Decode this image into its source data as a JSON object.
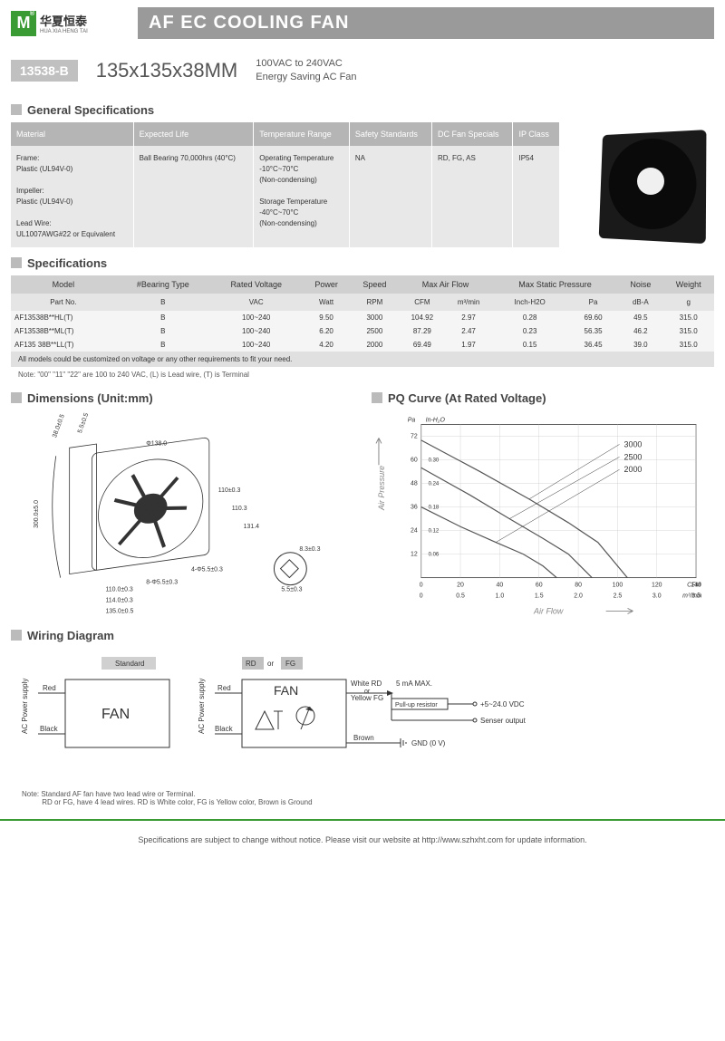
{
  "header": {
    "logo_letter": "M",
    "brand_cn": "华夏恒泰",
    "brand_en": "HUA XIA HENG TAI",
    "title": "AF EC COOLING FAN"
  },
  "model": {
    "badge": "13538-B",
    "size": "135x135x38MM",
    "desc1": "100VAC to 240VAC",
    "desc2": "Energy Saving AC Fan"
  },
  "gen": {
    "title": "General Specifications",
    "headers": [
      "Material",
      "Expected Life",
      "Temperature Range",
      "Safety Standards",
      "DC Fan Specials",
      "IP Class"
    ],
    "cells": [
      "Frame:\nPlastic (UL94V-0)\n\nImpeller:\nPlastic (UL94V-0)\n\nLead Wire:\nUL1007AWG#22 or Equivalent",
      "Ball Bearing 70,000hrs (40°C)",
      "Operating Temperature\n-10°C~70°C\n(Non-condensing)\n\nStorage Temperature\n-40°C~70°C\n(Non-condensing)",
      "NA",
      "RD, FG, AS",
      "IP54"
    ]
  },
  "spec": {
    "title": "Specifications",
    "h1": [
      "Model",
      "#Bearing Type",
      "Rated Voltage",
      "Power",
      "Speed",
      "Max Air Flow",
      "",
      "Max Static Pressure",
      "",
      "Noise",
      "Weight"
    ],
    "h2": [
      "Part No.",
      "B",
      "VAC",
      "Watt",
      "RPM",
      "CFM",
      "m³/min",
      "Inch-H2O",
      "Pa",
      "dB-A",
      "g"
    ],
    "rows": [
      [
        "AF13538B**HL(T)",
        "B",
        "100~240",
        "9.50",
        "3000",
        "104.92",
        "2.97",
        "0.28",
        "69.60",
        "49.5",
        "315.0"
      ],
      [
        "AF13538B**ML(T)",
        "B",
        "100~240",
        "6.20",
        "2500",
        "87.29",
        "2.47",
        "0.23",
        "56.35",
        "46.2",
        "315.0"
      ],
      [
        "AF135 38B**LL(T)",
        "B",
        "100~240",
        "4.20",
        "2000",
        "69.49",
        "1.97",
        "0.15",
        "36.45",
        "39.0",
        "315.0"
      ]
    ],
    "note1": "All models could be customized on voltage or any other requirements to fit your need.",
    "note2": "Note: \"00\" \"11\" \"22\" are 100 to 240 VAC, (L) is Lead wire, (T) is Terminal"
  },
  "dim": {
    "title": "Dimensions (Unit:mm)",
    "labels": {
      "d138": "Φ138.0",
      "l110": "110±0.3",
      "l1103": "110.3",
      "l1314": "131.4",
      "l1100": "110.0±0.3",
      "l1140": "114.0±0.3",
      "l1350": "135.0±0.5",
      "h4": "4-Φ5.5±0.3",
      "h8": "8-Φ5.5±0.3",
      "d38": "38.0±0.5",
      "d55": "5.5±0.5",
      "d300": "300.0±5.0",
      "d83": "8.3±0.3",
      "d552": "5.5±0.3"
    }
  },
  "pq": {
    "title": "PQ Curve (At Rated Voltage)",
    "ylabel": "Air Pressure",
    "xlabel": "Air Flow",
    "pa_label": "Pa",
    "inh2o_label": "In-H₂O",
    "cfm_label": "CFM",
    "m3_label": "m³/min",
    "y_pa": [
      12,
      24,
      36,
      48,
      60,
      72
    ],
    "y_in": [
      "0.06",
      "0.12",
      "0.18",
      "0.24",
      "0.30"
    ],
    "x_cfm": [
      0,
      20,
      40,
      60,
      80,
      100,
      120,
      140
    ],
    "x_m3": [
      "0",
      "0.5",
      "1.0",
      "1.5",
      "2.0",
      "2.5",
      "3.0",
      "3.5"
    ],
    "series": [
      {
        "label": "3000",
        "pts": [
          [
            0,
            70
          ],
          [
            30,
            54
          ],
          [
            55,
            40
          ],
          [
            75,
            28
          ],
          [
            90,
            18
          ],
          [
            105,
            0
          ]
        ]
      },
      {
        "label": "2500",
        "pts": [
          [
            0,
            56
          ],
          [
            25,
            42
          ],
          [
            45,
            30
          ],
          [
            62,
            20
          ],
          [
            75,
            12
          ],
          [
            87,
            0
          ]
        ]
      },
      {
        "label": "2000",
        "pts": [
          [
            0,
            36
          ],
          [
            20,
            26
          ],
          [
            38,
            18
          ],
          [
            52,
            12
          ],
          [
            62,
            6
          ],
          [
            69,
            0
          ]
        ]
      }
    ],
    "line_color": "#555",
    "grid_color": "#ccc",
    "bg": "#fff"
  },
  "wiring": {
    "title": "Wiring Diagram",
    "std": "Standard",
    "rd": "RD",
    "fg": "FG",
    "or": "or",
    "fan": "FAN",
    "ac": "AC Power supply",
    "red": "Red",
    "black": "Black",
    "white": "White RD",
    "yellow": "Yellow FG",
    "brown": "Brown",
    "gnd": "GND (0 V)",
    "ma": "5 mA MAX.",
    "pull": "Pull-up resistor",
    "vdc": "+5~24.0 VDC",
    "sense": "Senser output",
    "note": "Note: Standard AF fan have two lead wire or Terminal.\n          RD or FG, have 4 lead wires. RD is White color, FG is Yellow color, Brown is Ground"
  },
  "footer": "Specifications are subject to change without notice. Please visit our website at http://www.szhxht.com for update information."
}
